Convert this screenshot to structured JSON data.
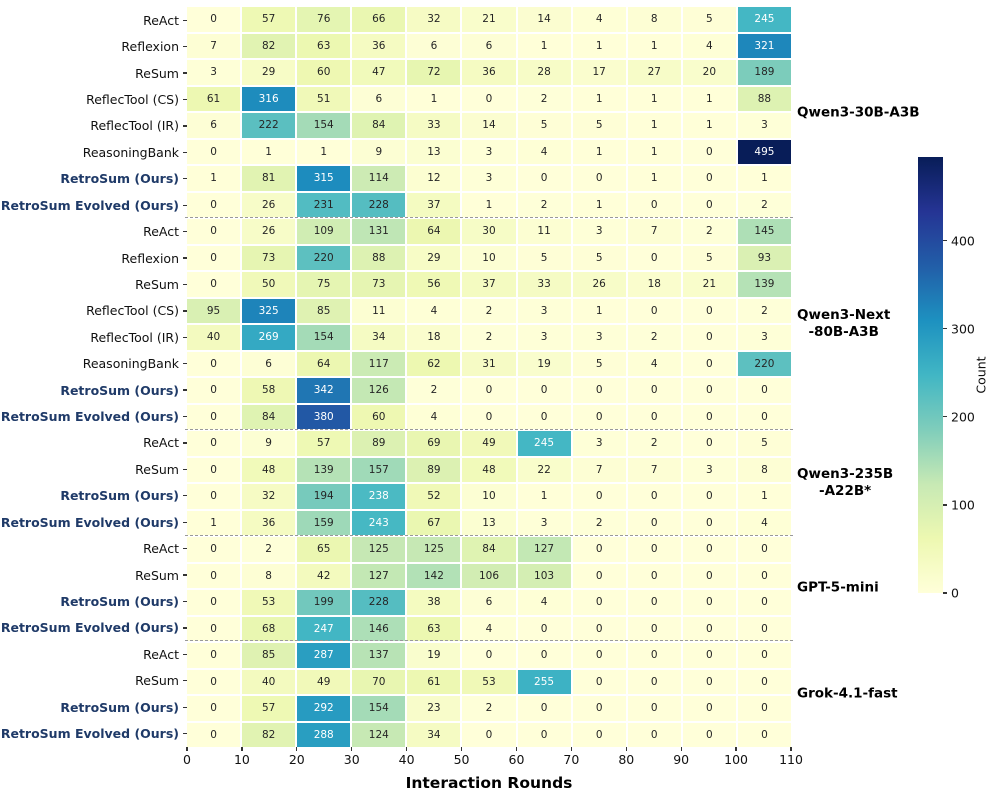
{
  "chart_data": {
    "type": "heatmap",
    "xlabel": "Interaction Rounds",
    "colorbar_label": "Count",
    "x_tick_labels": [
      0,
      10,
      20,
      30,
      40,
      50,
      60,
      70,
      80,
      90,
      100,
      110
    ],
    "n_bins": 11,
    "vmin": 0,
    "vmax": 495,
    "colorbar_ticks": [
      0,
      100,
      200,
      300,
      400
    ],
    "colormap_name": "YlGnBu",
    "colormap_anchors": [
      "#ffffd9",
      "#edf8b1",
      "#c7e9b4",
      "#7fcdbb",
      "#41b6c4",
      "#1d91c0",
      "#225ea8",
      "#253494",
      "#081d58"
    ],
    "grid_on": false,
    "legend_position": "right-colorbar",
    "groups": [
      {
        "model": "Qwen3-30B-A3B",
        "label_lines": "Qwen3-30B-A3B",
        "rows": [
          {
            "method": "ReAct",
            "highlight": false,
            "values": [
              0,
              57,
              76,
              66,
              32,
              21,
              14,
              4,
              8,
              5,
              245
            ]
          },
          {
            "method": "Reflexion",
            "highlight": false,
            "values": [
              7,
              82,
              63,
              36,
              6,
              6,
              1,
              1,
              1,
              4,
              321
            ]
          },
          {
            "method": "ReSum",
            "highlight": false,
            "values": [
              3,
              29,
              60,
              47,
              72,
              36,
              28,
              17,
              27,
              20,
              189
            ]
          },
          {
            "method": "ReflecTool (CS)",
            "highlight": false,
            "values": [
              61,
              316,
              51,
              6,
              1,
              0,
              2,
              1,
              1,
              1,
              88
            ]
          },
          {
            "method": "ReflecTool (IR)",
            "highlight": false,
            "values": [
              6,
              222,
              154,
              84,
              33,
              14,
              5,
              5,
              1,
              1,
              3
            ]
          },
          {
            "method": "ReasoningBank",
            "highlight": false,
            "values": [
              0,
              1,
              1,
              9,
              13,
              3,
              4,
              1,
              1,
              0,
              495
            ]
          },
          {
            "method": "RetroSum (Ours)",
            "highlight": true,
            "values": [
              1,
              81,
              315,
              114,
              12,
              3,
              0,
              0,
              1,
              0,
              1
            ]
          },
          {
            "method": "RetroSum Evolved (Ours)",
            "highlight": true,
            "values": [
              0,
              26,
              231,
              228,
              37,
              1,
              2,
              1,
              0,
              0,
              2
            ]
          }
        ]
      },
      {
        "model": "Qwen3-Next-80B-A3B",
        "label_lines": "Qwen3-Next\n-80B-A3B",
        "rows": [
          {
            "method": "ReAct",
            "highlight": false,
            "values": [
              0,
              26,
              109,
              131,
              64,
              30,
              11,
              3,
              7,
              2,
              145
            ]
          },
          {
            "method": "Reflexion",
            "highlight": false,
            "values": [
              0,
              73,
              220,
              88,
              29,
              10,
              5,
              5,
              0,
              5,
              93
            ]
          },
          {
            "method": "ReSum",
            "highlight": false,
            "values": [
              0,
              50,
              75,
              73,
              56,
              37,
              33,
              26,
              18,
              21,
              139
            ]
          },
          {
            "method": "ReflecTool (CS)",
            "highlight": false,
            "values": [
              95,
              325,
              85,
              11,
              4,
              2,
              3,
              1,
              0,
              0,
              2
            ]
          },
          {
            "method": "ReflecTool (IR)",
            "highlight": false,
            "values": [
              40,
              269,
              154,
              34,
              18,
              2,
              3,
              3,
              2,
              0,
              3
            ]
          },
          {
            "method": "ReasoningBank",
            "highlight": false,
            "values": [
              0,
              6,
              64,
              117,
              62,
              31,
              19,
              5,
              4,
              0,
              220
            ]
          },
          {
            "method": "RetroSum (Ours)",
            "highlight": true,
            "values": [
              0,
              58,
              342,
              126,
              2,
              0,
              0,
              0,
              0,
              0,
              0
            ]
          },
          {
            "method": "RetroSum Evolved (Ours)",
            "highlight": true,
            "values": [
              0,
              84,
              380,
              60,
              4,
              0,
              0,
              0,
              0,
              0,
              0
            ]
          }
        ]
      },
      {
        "model": "Qwen3-235B-A22B*",
        "label_lines": "Qwen3-235B\n-A22B*",
        "rows": [
          {
            "method": "ReAct",
            "highlight": false,
            "values": [
              0,
              9,
              57,
              89,
              69,
              49,
              245,
              3,
              2,
              0,
              5
            ]
          },
          {
            "method": "ReSum",
            "highlight": false,
            "values": [
              0,
              48,
              139,
              157,
              89,
              48,
              22,
              7,
              7,
              3,
              8
            ]
          },
          {
            "method": "RetroSum (Ours)",
            "highlight": true,
            "values": [
              0,
              32,
              194,
              238,
              52,
              10,
              1,
              0,
              0,
              0,
              1
            ]
          },
          {
            "method": "RetroSum Evolved (Ours)",
            "highlight": true,
            "values": [
              1,
              36,
              159,
              243,
              67,
              13,
              3,
              2,
              0,
              0,
              4
            ]
          }
        ]
      },
      {
        "model": "GPT-5-mini",
        "label_lines": "GPT-5-mini",
        "rows": [
          {
            "method": "ReAct",
            "highlight": false,
            "values": [
              0,
              2,
              65,
              125,
              125,
              84,
              127,
              0,
              0,
              0,
              0
            ]
          },
          {
            "method": "ReSum",
            "highlight": false,
            "values": [
              0,
              8,
              42,
              127,
              142,
              106,
              103,
              0,
              0,
              0,
              0
            ]
          },
          {
            "method": "RetroSum (Ours)",
            "highlight": true,
            "values": [
              0,
              53,
              199,
              228,
              38,
              6,
              4,
              0,
              0,
              0,
              0
            ]
          },
          {
            "method": "RetroSum Evolved (Ours)",
            "highlight": true,
            "values": [
              0,
              68,
              247,
              146,
              63,
              4,
              0,
              0,
              0,
              0,
              0
            ]
          }
        ]
      },
      {
        "model": "Grok-4.1-fast",
        "label_lines": "Grok-4.1-fast",
        "rows": [
          {
            "method": "ReAct",
            "highlight": false,
            "values": [
              0,
              85,
              287,
              137,
              19,
              0,
              0,
              0,
              0,
              0,
              0
            ]
          },
          {
            "method": "ReSum",
            "highlight": false,
            "values": [
              0,
              40,
              49,
              70,
              61,
              53,
              255,
              0,
              0,
              0,
              0
            ]
          },
          {
            "method": "RetroSum (Ours)",
            "highlight": true,
            "values": [
              0,
              57,
              292,
              154,
              23,
              2,
              0,
              0,
              0,
              0,
              0
            ]
          },
          {
            "method": "RetroSum Evolved (Ours)",
            "highlight": true,
            "values": [
              0,
              82,
              288,
              124,
              34,
              0,
              0,
              0,
              0,
              0,
              0
            ]
          }
        ]
      }
    ]
  },
  "colors": {
    "highlight_label": "#1f3a68",
    "annotation_dark": "#262626",
    "annotation_light": "#ffffff",
    "separator": "#999999",
    "plain_label": "#111111"
  }
}
